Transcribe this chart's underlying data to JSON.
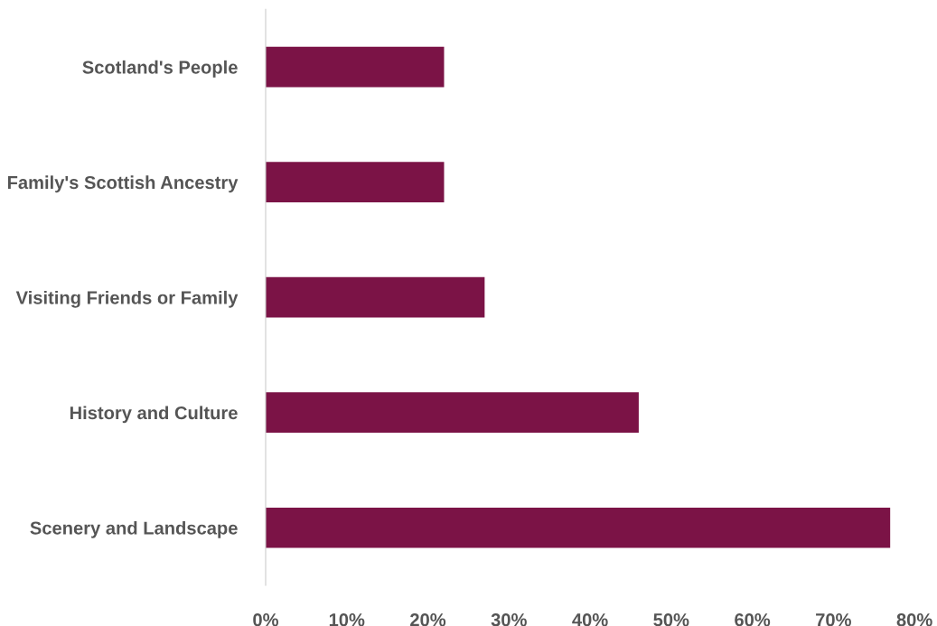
{
  "chart_data": {
    "type": "bar",
    "orientation": "horizontal",
    "categories": [
      "Scotland's People",
      "Family's Scottish Ancestry",
      "Visiting Friends or Family",
      "History and Culture",
      "Scenery and Landscape"
    ],
    "values": [
      22,
      22,
      27,
      46,
      77
    ],
    "color": "#7b1346",
    "xlim": [
      0,
      80
    ],
    "xticks": [
      {
        "value": 0,
        "label": "0%"
      },
      {
        "value": 10,
        "label": "10%"
      },
      {
        "value": 20,
        "label": "20%"
      },
      {
        "value": 30,
        "label": "30%"
      },
      {
        "value": 40,
        "label": "40%"
      },
      {
        "value": 50,
        "label": "50%"
      },
      {
        "value": 60,
        "label": "60%"
      },
      {
        "value": 70,
        "label": "70%"
      },
      {
        "value": 80,
        "label": "80%"
      }
    ],
    "grid": false,
    "legend": false
  }
}
